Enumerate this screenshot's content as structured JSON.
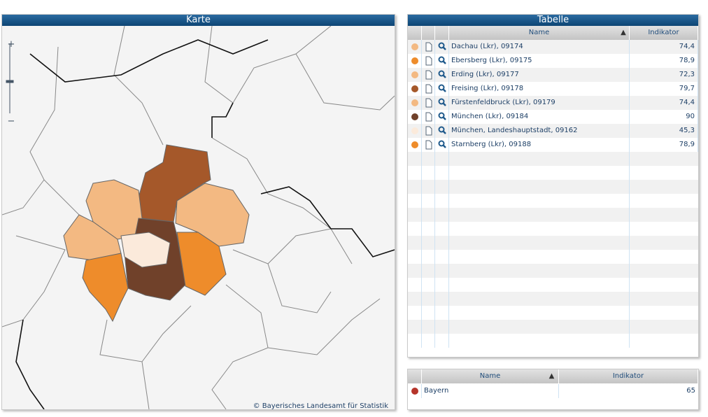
{
  "map": {
    "title": "Karte",
    "copyright": "© Bayerisches Landesamt für Statistik"
  },
  "table": {
    "title": "Tabelle",
    "columns": [
      "Name",
      "Indikator"
    ],
    "sort_marker": "▲",
    "rows": [
      {
        "name": "Dachau (Lkr),  09174",
        "value": "74,4",
        "color": "#f3b982"
      },
      {
        "name": "Ebersberg (Lkr),  09175",
        "value": "78,9",
        "color": "#ee8c2b"
      },
      {
        "name": "Erding (Lkr),  09177",
        "value": "72,3",
        "color": "#f3b982"
      },
      {
        "name": "Freising (Lkr),  09178",
        "value": "79,7",
        "color": "#a5582a"
      },
      {
        "name": "Fürstenfeldbruck (Lkr),  09179",
        "value": "74,4",
        "color": "#f3b982"
      },
      {
        "name": "München (Lkr),  09184",
        "value": "90",
        "color": "#70412a"
      },
      {
        "name": "München, Landeshauptstadt,  09162",
        "value": "45,3",
        "color": "#fbeadb"
      },
      {
        "name": "Starnberg (Lkr),  09188",
        "value": "78,9",
        "color": "#ee8c2b"
      }
    ]
  },
  "summary": {
    "columns": [
      "Name",
      "Indikator"
    ],
    "sort_marker": "▲",
    "rows": [
      {
        "name": "Bayern",
        "value": "65",
        "color": "#b5342a"
      }
    ]
  }
}
